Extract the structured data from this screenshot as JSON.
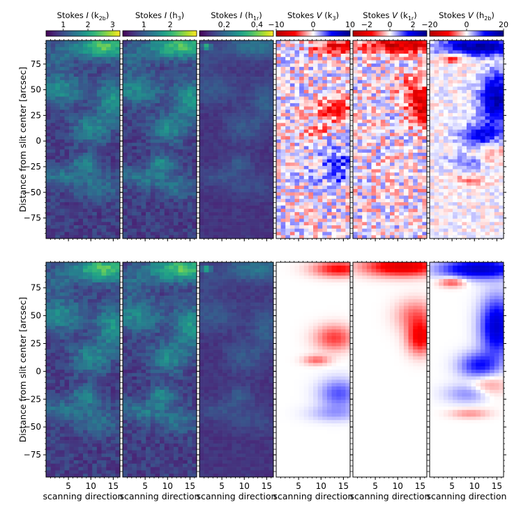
{
  "figure": {
    "ylabel": "Distance from slit center [arcsec]",
    "xlabel": "scanning direction",
    "rows": 2
  },
  "chart_data": [
    {
      "type": "heatmap",
      "title_parts": [
        "Stokes ",
        "I",
        "  (k",
        "2b",
        ")"
      ],
      "colormap": "viridis",
      "colorbar_ticks": [
        {
          "label": "1",
          "value": 1
        },
        {
          "label": "2",
          "value": 2
        },
        {
          "label": "3",
          "value": 3
        }
      ],
      "colorbar_range": [
        0.3,
        3.3
      ],
      "xlabel": "scanning direction",
      "xlim": [
        0,
        16.5
      ],
      "ylim": [
        -95,
        98
      ]
    },
    {
      "type": "heatmap",
      "title_parts": [
        "Stokes ",
        "I",
        "  (h",
        "3",
        ")"
      ],
      "colormap": "viridis",
      "colorbar_ticks": [
        {
          "label": "1",
          "value": 1
        },
        {
          "label": "2",
          "value": 2
        }
      ],
      "colorbar_range": [
        0.2,
        3.0
      ],
      "xlabel": "scanning direction",
      "xlim": [
        0,
        16.5
      ],
      "ylim": [
        -95,
        98
      ]
    },
    {
      "type": "heatmap",
      "title_parts": [
        "Stokes ",
        "I",
        "  (h",
        "1r",
        ")"
      ],
      "colormap": "viridis",
      "colorbar_ticks": [
        {
          "label": "0.2",
          "value": 0.2
        },
        {
          "label": "0.4",
          "value": 0.4
        }
      ],
      "colorbar_range": [
        0.05,
        0.5
      ],
      "xlabel": "scanning direction",
      "xlim": [
        0,
        16.5
      ],
      "ylim": [
        -95,
        98
      ]
    },
    {
      "type": "heatmap",
      "title_parts": [
        "Stokes ",
        "V",
        "  (k",
        "3",
        ")"
      ],
      "colormap": "seismic_r",
      "colorbar_ticks": [
        {
          "label": "−10",
          "value": -10
        },
        {
          "label": "0",
          "value": 0
        },
        {
          "label": "10",
          "value": 10
        }
      ],
      "colorbar_range": [
        -10,
        10
      ],
      "xlabel": "scanning direction",
      "xlim": [
        0,
        16.5
      ],
      "ylim": [
        -95,
        98
      ]
    },
    {
      "type": "heatmap",
      "title_parts": [
        "Stokes ",
        "V",
        "  (k",
        "1r",
        ")"
      ],
      "colormap": "seismic_r",
      "colorbar_ticks": [
        {
          "label": "−2",
          "value": -2
        },
        {
          "label": "0",
          "value": 0
        },
        {
          "label": "2",
          "value": 2
        }
      ],
      "colorbar_range": [
        -3.2,
        3.2
      ],
      "xlabel": "scanning direction",
      "xlim": [
        0,
        16.5
      ],
      "ylim": [
        -95,
        98
      ]
    },
    {
      "type": "heatmap",
      "title_parts": [
        "Stokes ",
        "V",
        "  (h",
        "2b",
        ")"
      ],
      "colormap": "seismic_r",
      "colorbar_ticks": [
        {
          "label": "−20",
          "value": -20
        },
        {
          "label": "0",
          "value": 0
        },
        {
          "label": "20",
          "value": 20
        }
      ],
      "colorbar_range": [
        -20,
        20
      ],
      "xlabel": "scanning direction",
      "xlim": [
        0,
        16.5
      ],
      "ylim": [
        -95,
        98
      ]
    }
  ],
  "axes": {
    "x_ticks": [
      {
        "label": "5",
        "value": 5
      },
      {
        "label": "10",
        "value": 10
      },
      {
        "label": "15",
        "value": 15
      }
    ],
    "y_ticks": [
      {
        "label": "75",
        "value": 75
      },
      {
        "label": "50",
        "value": 50
      },
      {
        "label": "25",
        "value": 25
      },
      {
        "label": "0",
        "value": 0
      },
      {
        "label": "−25",
        "value": -25
      },
      {
        "label": "−50",
        "value": -50
      },
      {
        "label": "−75",
        "value": -75
      }
    ]
  }
}
